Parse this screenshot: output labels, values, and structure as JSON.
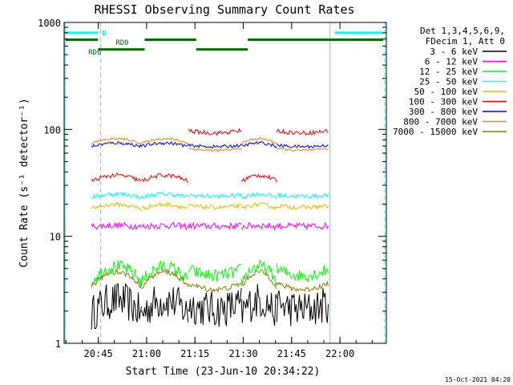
{
  "chart_data": {
    "type": "line",
    "title": "RHESSI Observing Summary Count Rates",
    "xlabel": "Start Time (23-Jun-10 20:34:22)",
    "ylabel": "Count Rate (s⁻¹ detector⁻¹)",
    "yscale": "log",
    "ylim": [
      1,
      1000
    ],
    "xlim_minutes": [
      0,
      100
    ],
    "x_ticks": [
      {
        "t": 10.6,
        "label": "20:45"
      },
      {
        "t": 25.6,
        "label": "21:00"
      },
      {
        "t": 40.6,
        "label": "21:15"
      },
      {
        "t": 55.6,
        "label": "21:30"
      },
      {
        "t": 70.6,
        "label": "21:45"
      },
      {
        "t": 85.6,
        "label": "22:00"
      }
    ],
    "y_ticks": [
      {
        "v": 1,
        "label": "1"
      },
      {
        "v": 10,
        "label": "10"
      },
      {
        "v": 100,
        "label": "100"
      },
      {
        "v": 1000,
        "label": "1000"
      }
    ],
    "legend_header": [
      "Det 1,3,4,5,6,9,",
      "FDecim 1, Att 0"
    ],
    "series": [
      {
        "name": "3 - 6 keV",
        "color": "#000000",
        "day": 2.2,
        "night": 2.2,
        "amp": 1.2,
        "noise": 0.35
      },
      {
        "name": "6 - 12 keV",
        "color": "#ff00ff",
        "day": 12.5,
        "night": 12.5,
        "amp": 0.1,
        "noise": 0.06
      },
      {
        "name": "12 - 25 keV",
        "color": "#00ff00",
        "day": 4.5,
        "night": 4.6,
        "amp": 1.3,
        "noise": 0.12
      },
      {
        "name": "25 - 50 keV",
        "color": "#00ffff",
        "day": 24,
        "night": 24,
        "amp": 0.3,
        "noise": 0.04
      },
      {
        "name": "50 - 100 keV",
        "color": "#d8c000",
        "day": 19,
        "night": 19,
        "amp": 0.35,
        "noise": 0.04
      },
      {
        "name": "100 - 300 keV",
        "color": "#ff0000",
        "day": 35,
        "night": 95,
        "amp": 0.5,
        "noise": 0.04
      },
      {
        "name": "300 - 800 keV",
        "color": "#0000ff",
        "day": 72,
        "night": 70,
        "amp": 0.3,
        "noise": 0.03
      },
      {
        "name": "800 - 7000 keV",
        "color": "#ff8000",
        "day": 78,
        "night": 65,
        "amp": 0.4,
        "noise": 0.02
      },
      {
        "name": "7000 - 15000 keV",
        "color": "#808000",
        "day": 4,
        "night": 3.4,
        "amp": 1.3,
        "noise": 0.05
      }
    ],
    "segments": [
      {
        "start": 8.5,
        "end": 24,
        "type": "day"
      },
      {
        "start": 24,
        "end": 38.5,
        "type": "day"
      },
      {
        "start": 38.5,
        "end": 55,
        "type": "night"
      },
      {
        "start": 55,
        "end": 66,
        "type": "day"
      },
      {
        "start": 66,
        "end": 82,
        "type": "night"
      }
    ],
    "annotations": [
      {
        "label": "N",
        "color": "#00d8d8"
      },
      {
        "label": "RD0",
        "color": "#007000"
      },
      {
        "label": "RD6",
        "color": "#007000"
      }
    ],
    "bars": [
      {
        "color": "#00ffff",
        "level": 800,
        "t0": 0.5,
        "t1": 10.5
      },
      {
        "color": "#00ffff",
        "level": 800,
        "t0": 84,
        "t1": 99
      },
      {
        "color": "#007000",
        "level": 690,
        "t0": 0.5,
        "t1": 10.5
      },
      {
        "color": "#007000",
        "level": 560,
        "t0": 10.5,
        "t1": 25
      },
      {
        "color": "#007000",
        "level": 690,
        "t0": 25,
        "t1": 41
      },
      {
        "color": "#007000",
        "level": 560,
        "t0": 41,
        "t1": 57
      },
      {
        "color": "#007000",
        "level": 690,
        "t0": 57,
        "t1": 99
      }
    ],
    "vlines": [
      {
        "t": 0.3,
        "style": "solid",
        "color": "#00ffff"
      },
      {
        "t": 11.3,
        "style": "dashed",
        "color": "#00ffff"
      },
      {
        "t": 82.5,
        "style": "solid",
        "color": "#00ffff"
      },
      {
        "t": 99.5,
        "style": "dashed",
        "color": "#00ffff"
      }
    ],
    "footer": "15-Oct-2021 04:20"
  }
}
